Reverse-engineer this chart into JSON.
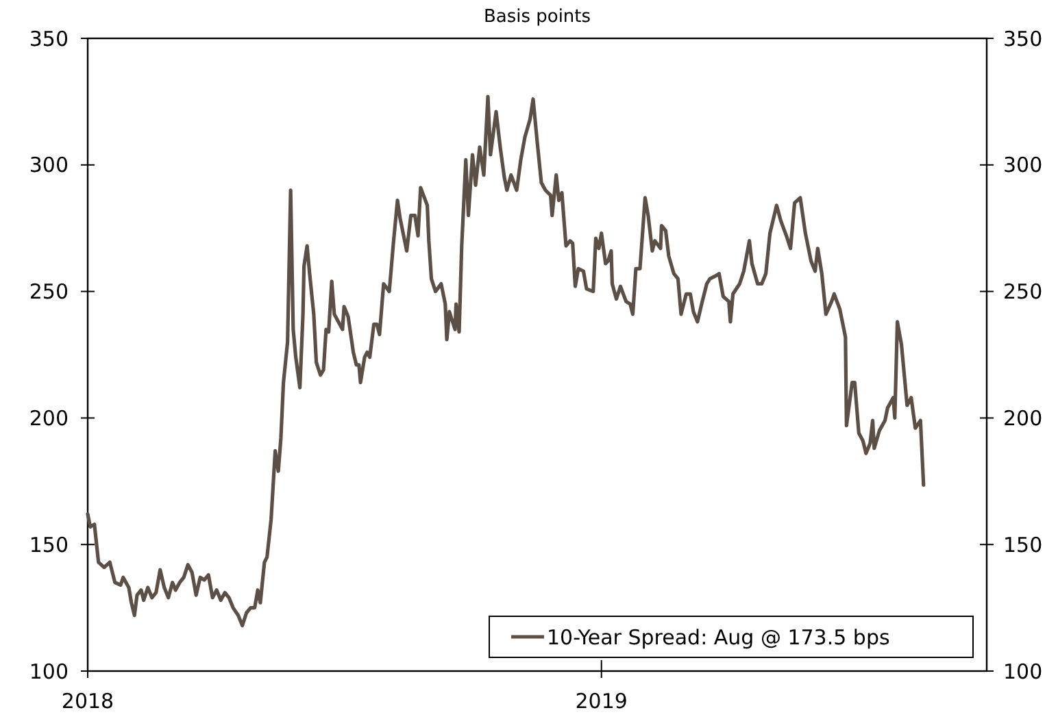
{
  "chart_data": {
    "type": "line",
    "title": "Basis points",
    "x": [
      2018,
      2018.005,
      2018.013,
      2018.021,
      2018.032,
      2018.043,
      2018.053,
      2018.064,
      2018.069,
      2018.08,
      2018.085,
      2018.091,
      2018.096,
      2018.104,
      2018.109,
      2018.117,
      2018.125,
      2018.133,
      2018.141,
      2018.149,
      2018.157,
      2018.165,
      2018.171,
      2018.179,
      2018.187,
      2018.195,
      2018.203,
      2018.211,
      2018.219,
      2018.227,
      2018.235,
      2018.243,
      2018.251,
      2018.259,
      2018.267,
      2018.275,
      2018.283,
      2018.293,
      2018.301,
      2018.309,
      2018.317,
      2018.325,
      2018.331,
      2018.336,
      2018.344,
      2018.349,
      2018.357,
      2018.365,
      2018.371,
      2018.376,
      2018.381,
      2018.389,
      2018.395,
      2018.4,
      2018.405,
      2018.413,
      2018.419,
      2018.421,
      2018.427,
      2018.432,
      2018.44,
      2018.445,
      2018.453,
      2018.459,
      2018.464,
      2018.469,
      2018.475,
      2018.48,
      2018.488,
      2018.496,
      2018.499,
      2018.507,
      2018.512,
      2018.517,
      2018.523,
      2018.528,
      2018.531,
      2018.539,
      2018.544,
      2018.549,
      2018.557,
      2018.563,
      2018.568,
      2018.576,
      2018.587,
      2018.595,
      2018.603,
      2018.608,
      2018.621,
      2018.629,
      2018.637,
      2018.643,
      2018.648,
      2018.661,
      2018.664,
      2018.669,
      2018.677,
      2018.688,
      2018.696,
      2018.699,
      2018.704,
      2018.715,
      2018.717,
      2018.723,
      2018.728,
      2018.736,
      2018.741,
      2018.749,
      2018.755,
      2018.763,
      2018.771,
      2018.779,
      2018.784,
      2018.795,
      2018.803,
      2018.811,
      2018.816,
      2018.824,
      2018.835,
      2018.843,
      2018.851,
      2018.861,
      2018.867,
      2018.875,
      2018.883,
      2018.891,
      2018.901,
      2018.904,
      2018.912,
      2018.917,
      2018.923,
      2018.931,
      2018.939,
      2018.944,
      2018.949,
      2018.955,
      2018.965,
      2018.971,
      2018.984,
      2018.989,
      2018.995,
      2019,
      2019.008,
      2019.013,
      2019.019,
      2019.021,
      2019.029,
      2019.037,
      2019.048,
      2019.056,
      2019.061,
      2019.067,
      2019.075,
      2019.085,
      2019.091,
      2019.099,
      2019.104,
      2019.115,
      2019.117,
      2019.125,
      2019.131,
      2019.141,
      2019.149,
      2019.155,
      2019.165,
      2019.173,
      2019.179,
      2019.187,
      2019.195,
      2019.205,
      2019.211,
      2019.221,
      2019.229,
      2019.237,
      2019.248,
      2019.251,
      2019.256,
      2019.269,
      2019.277,
      2019.288,
      2019.293,
      2019.304,
      2019.312,
      2019.32,
      2019.328,
      2019.341,
      2019.349,
      2019.36,
      2019.368,
      2019.376,
      2019.387,
      2019.397,
      2019.408,
      2019.416,
      2019.421,
      2019.429,
      2019.437,
      2019.448,
      2019.453,
      2019.464,
      2019.475,
      2019.477,
      2019.488,
      2019.493,
      2019.501,
      2019.509,
      2019.515,
      2019.523,
      2019.528,
      2019.531,
      2019.541,
      2019.552,
      2019.557,
      2019.568,
      2019.571,
      2019.576,
      2019.584,
      2019.595,
      2019.603,
      2019.611,
      2019.621,
      2019.627
    ],
    "series": [
      {
        "name": "10-Year Spread: Aug @ 173.5 bps",
        "color": "#5c5046",
        "values": [
          162,
          157,
          158,
          143,
          141,
          143,
          135,
          134,
          137,
          133,
          127,
          122,
          130,
          132,
          128,
          133,
          129,
          131,
          140,
          133,
          129,
          135,
          132,
          135,
          137,
          142,
          139,
          130,
          137,
          136,
          138,
          129,
          132,
          128,
          131,
          129,
          125,
          122,
          118,
          123,
          125,
          125,
          132,
          127,
          143,
          145,
          160,
          187,
          179,
          192,
          214,
          230,
          290,
          235,
          224,
          212,
          241,
          260,
          268,
          257,
          241,
          222,
          217,
          219,
          235,
          234,
          254,
          241,
          238,
          235,
          244,
          240,
          233,
          226,
          221,
          221,
          214,
          224,
          226,
          224,
          237,
          237,
          233,
          253,
          250,
          269,
          286,
          279,
          266,
          280,
          280,
          272,
          291,
          284,
          270,
          255,
          250,
          253,
          245,
          231,
          242,
          235,
          245,
          234,
          268,
          302,
          280,
          304,
          292,
          307,
          296,
          327,
          304,
          321,
          307,
          295,
          290,
          296,
          290,
          302,
          311,
          318,
          326,
          309,
          293,
          290,
          288,
          280,
          296,
          286,
          289,
          268,
          270,
          269,
          252,
          259,
          258,
          251,
          250,
          271,
          267,
          273,
          261,
          262,
          266,
          253,
          247,
          252,
          246,
          245,
          241,
          259,
          259,
          287,
          280,
          266,
          270,
          267,
          276,
          274,
          264,
          257,
          255,
          241,
          249,
          249,
          242,
          238,
          245,
          253,
          255,
          256,
          257,
          248,
          246,
          238,
          249,
          253,
          258,
          270,
          261,
          253,
          253,
          257,
          273,
          284,
          278,
          272,
          267,
          285,
          287,
          273,
          262,
          258,
          267,
          257,
          241,
          246,
          249,
          243,
          232,
          197,
          214,
          214,
          194,
          191,
          186,
          190,
          199,
          188,
          195,
          199,
          204,
          208,
          200,
          238,
          229,
          205,
          208,
          196,
          199,
          173.5
        ]
      }
    ],
    "xlim": [
      2018,
      2019.75
    ],
    "xticks": [
      2018,
      2019
    ],
    "ylim": [
      100,
      350
    ],
    "yticks": [
      100,
      150,
      200,
      250,
      300,
      350
    ],
    "y2lim": [
      100,
      350
    ],
    "y2ticks": [
      100,
      150,
      200,
      250,
      300,
      350
    ],
    "legend": "bottom right",
    "grid": false,
    "marker": "none",
    "line_style": "solid"
  }
}
